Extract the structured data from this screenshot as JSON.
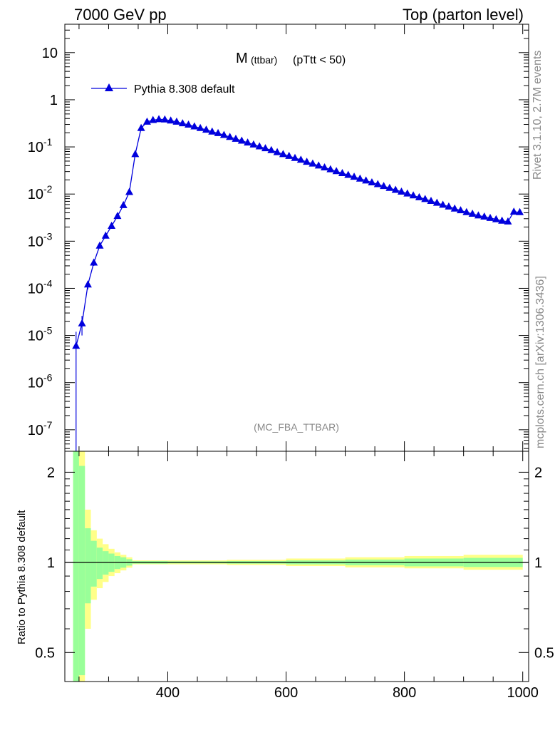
{
  "header": {
    "left": "7000 GeV pp",
    "right": "Top (parton level)"
  },
  "plot_title": {
    "main": "M",
    "sub": "(ttbar)",
    "cut": "(pTtt < 50)"
  },
  "side_labels": {
    "rivet": "Rivet 3.1.10,  2.7M events",
    "mcplots": "mcplots.cern.ch [arXiv:1306.3436]"
  },
  "watermark": "(MC_FBA_TTBAR)",
  "colors": {
    "series": "#0000dd",
    "band_inner": "#99ff99",
    "band_outer": "#ffff88"
  },
  "chart_data": [
    {
      "type": "line",
      "marker": "triangle",
      "yscale": "log",
      "xlim": [
        226,
        1010
      ],
      "ylim": [
        3.5e-08,
        40
      ],
      "yticks": [
        1e-07,
        1e-06,
        1e-05,
        0.0001,
        0.001,
        0.01,
        0.1,
        1,
        10
      ],
      "ytick_labels": [
        "10^-7",
        "10^-6",
        "10^-5",
        "10^-4",
        "10^-3",
        "10^-2",
        "10^-1",
        "1",
        "10"
      ],
      "legend": "top-left",
      "series": [
        {
          "name": "Pythia 8.308 default",
          "x": [
            245,
            255,
            265,
            275,
            285,
            295,
            305,
            315,
            325,
            335,
            345,
            355,
            365,
            375,
            385,
            395,
            405,
            415,
            425,
            435,
            445,
            455,
            465,
            475,
            485,
            495,
            505,
            515,
            525,
            535,
            545,
            555,
            565,
            575,
            585,
            595,
            605,
            615,
            625,
            635,
            645,
            655,
            665,
            675,
            685,
            695,
            705,
            715,
            725,
            735,
            745,
            755,
            765,
            775,
            785,
            795,
            805,
            815,
            825,
            835,
            845,
            855,
            865,
            875,
            885,
            895,
            905,
            915,
            925,
            935,
            945,
            955,
            965,
            975,
            985,
            995
          ],
          "y": [
            6e-06,
            1.8e-05,
            0.00012,
            0.00035,
            0.0008,
            0.0013,
            0.0021,
            0.0034,
            0.0058,
            0.011,
            0.07,
            0.25,
            0.34,
            0.37,
            0.385,
            0.38,
            0.36,
            0.34,
            0.315,
            0.295,
            0.27,
            0.25,
            0.23,
            0.21,
            0.195,
            0.178,
            0.162,
            0.148,
            0.135,
            0.123,
            0.112,
            0.102,
            0.093,
            0.085,
            0.077,
            0.07,
            0.064,
            0.058,
            0.053,
            0.048,
            0.044,
            0.04,
            0.0365,
            0.0333,
            0.0304,
            0.0277,
            0.0253,
            0.0231,
            0.0211,
            0.0193,
            0.0176,
            0.0161,
            0.0147,
            0.0134,
            0.0122,
            0.0112,
            0.0102,
            0.0093,
            0.0085,
            0.0078,
            0.0071,
            0.0065,
            0.0059,
            0.0054,
            0.0049,
            0.0045,
            0.0041,
            0.0038,
            0.0035,
            0.0033,
            0.0031,
            0.0029,
            0.0027,
            0.0026,
            0.0042,
            0.0041
          ],
          "err_lo": [
            6e-06,
            8e-06,
            2.5e-05,
            5e-05,
            8e-05,
            0.0001,
            0.00013,
            0.00018,
            0.00025,
            0.0004,
            0.001,
            0.002,
            0.002,
            0.002,
            0.002,
            0.002,
            0.002,
            0.002,
            0.002,
            0.002,
            0.002,
            0.0015,
            0.0015,
            0.0015,
            0.0015,
            0.0012,
            0.0012,
            0.001,
            0.001,
            0.001,
            0.0009,
            0.0008,
            0.0008,
            0.0007,
            0.0007,
            0.0006,
            0.0006,
            0.0005,
            0.0005,
            0.0005,
            0.0004,
            0.0004,
            0.0004,
            0.0003,
            0.0003,
            0.0003,
            0.0003,
            0.0003,
            0.0002,
            0.0002,
            0.0002,
            0.0002,
            0.0002,
            0.0002,
            0.0002,
            0.0002,
            0.00015,
            0.00015,
            0.00015,
            0.00015,
            0.00015,
            0.00015,
            0.00015,
            0.00015,
            0.0001,
            0.0001,
            0.0001,
            0.0001,
            0.0001,
            0.0001,
            0.0001,
            0.0001,
            0.0001,
            0.0001,
            0.00015,
            0.00015
          ],
          "err_hi": [
            6e-06,
            8e-06,
            2.5e-05,
            5e-05,
            8e-05,
            0.0001,
            0.00013,
            0.00018,
            0.00025,
            0.0004,
            0.001,
            0.002,
            0.002,
            0.002,
            0.002,
            0.002,
            0.002,
            0.002,
            0.002,
            0.002,
            0.002,
            0.0015,
            0.0015,
            0.0015,
            0.0015,
            0.0012,
            0.0012,
            0.001,
            0.001,
            0.001,
            0.0009,
            0.0008,
            0.0008,
            0.0007,
            0.0007,
            0.0006,
            0.0006,
            0.0005,
            0.0005,
            0.0005,
            0.0004,
            0.0004,
            0.0004,
            0.0003,
            0.0003,
            0.0003,
            0.0003,
            0.0003,
            0.0002,
            0.0002,
            0.0002,
            0.0002,
            0.0002,
            0.0002,
            0.0002,
            0.0002,
            0.00015,
            0.00015,
            0.00015,
            0.00015,
            0.00015,
            0.00015,
            0.00015,
            0.00015,
            0.0001,
            0.0001,
            0.0001,
            0.0001,
            0.0001,
            0.0001,
            0.0001,
            0.0001,
            0.0001,
            0.0001,
            0.00015,
            0.00015
          ]
        }
      ]
    },
    {
      "type": "area",
      "yscale": "log",
      "xlim": [
        226,
        1010
      ],
      "ylim": [
        0.4,
        2.35
      ],
      "ylabel": "Ratio to Pythia 8.308 default",
      "xticks": [
        400,
        600,
        800,
        1000
      ],
      "yticks": [
        0.5,
        1,
        2
      ],
      "ytick_labels": [
        "0.5",
        "1",
        "2"
      ],
      "reference_line": 1,
      "bin_edges": [
        240,
        250,
        260,
        270,
        280,
        290,
        300,
        310,
        320,
        330,
        340,
        400,
        500,
        600,
        700,
        800,
        900,
        1000
      ],
      "band_inner": [
        [
          0.3,
          2.4
        ],
        [
          0.42,
          2.1
        ],
        [
          0.73,
          1.3
        ],
        [
          0.83,
          1.18
        ],
        [
          0.88,
          1.12
        ],
        [
          0.91,
          1.09
        ],
        [
          0.93,
          1.07
        ],
        [
          0.95,
          1.05
        ],
        [
          0.96,
          1.04
        ],
        [
          0.975,
          1.025
        ],
        [
          0.99,
          1.01
        ],
        [
          0.992,
          1.008
        ],
        [
          0.99,
          1.01
        ],
        [
          0.985,
          1.015
        ],
        [
          0.978,
          1.022
        ],
        [
          0.97,
          1.03
        ],
        [
          0.965,
          1.035
        ]
      ],
      "band_outer": [
        [
          0.3,
          2.4
        ],
        [
          0.35,
          2.4
        ],
        [
          0.6,
          1.5
        ],
        [
          0.75,
          1.28
        ],
        [
          0.82,
          1.2
        ],
        [
          0.86,
          1.15
        ],
        [
          0.9,
          1.11
        ],
        [
          0.92,
          1.08
        ],
        [
          0.94,
          1.06
        ],
        [
          0.96,
          1.04
        ],
        [
          0.985,
          1.015
        ],
        [
          0.985,
          1.015
        ],
        [
          0.98,
          1.02
        ],
        [
          0.972,
          1.03
        ],
        [
          0.962,
          1.04
        ],
        [
          0.955,
          1.05
        ],
        [
          0.945,
          1.06
        ]
      ]
    }
  ]
}
